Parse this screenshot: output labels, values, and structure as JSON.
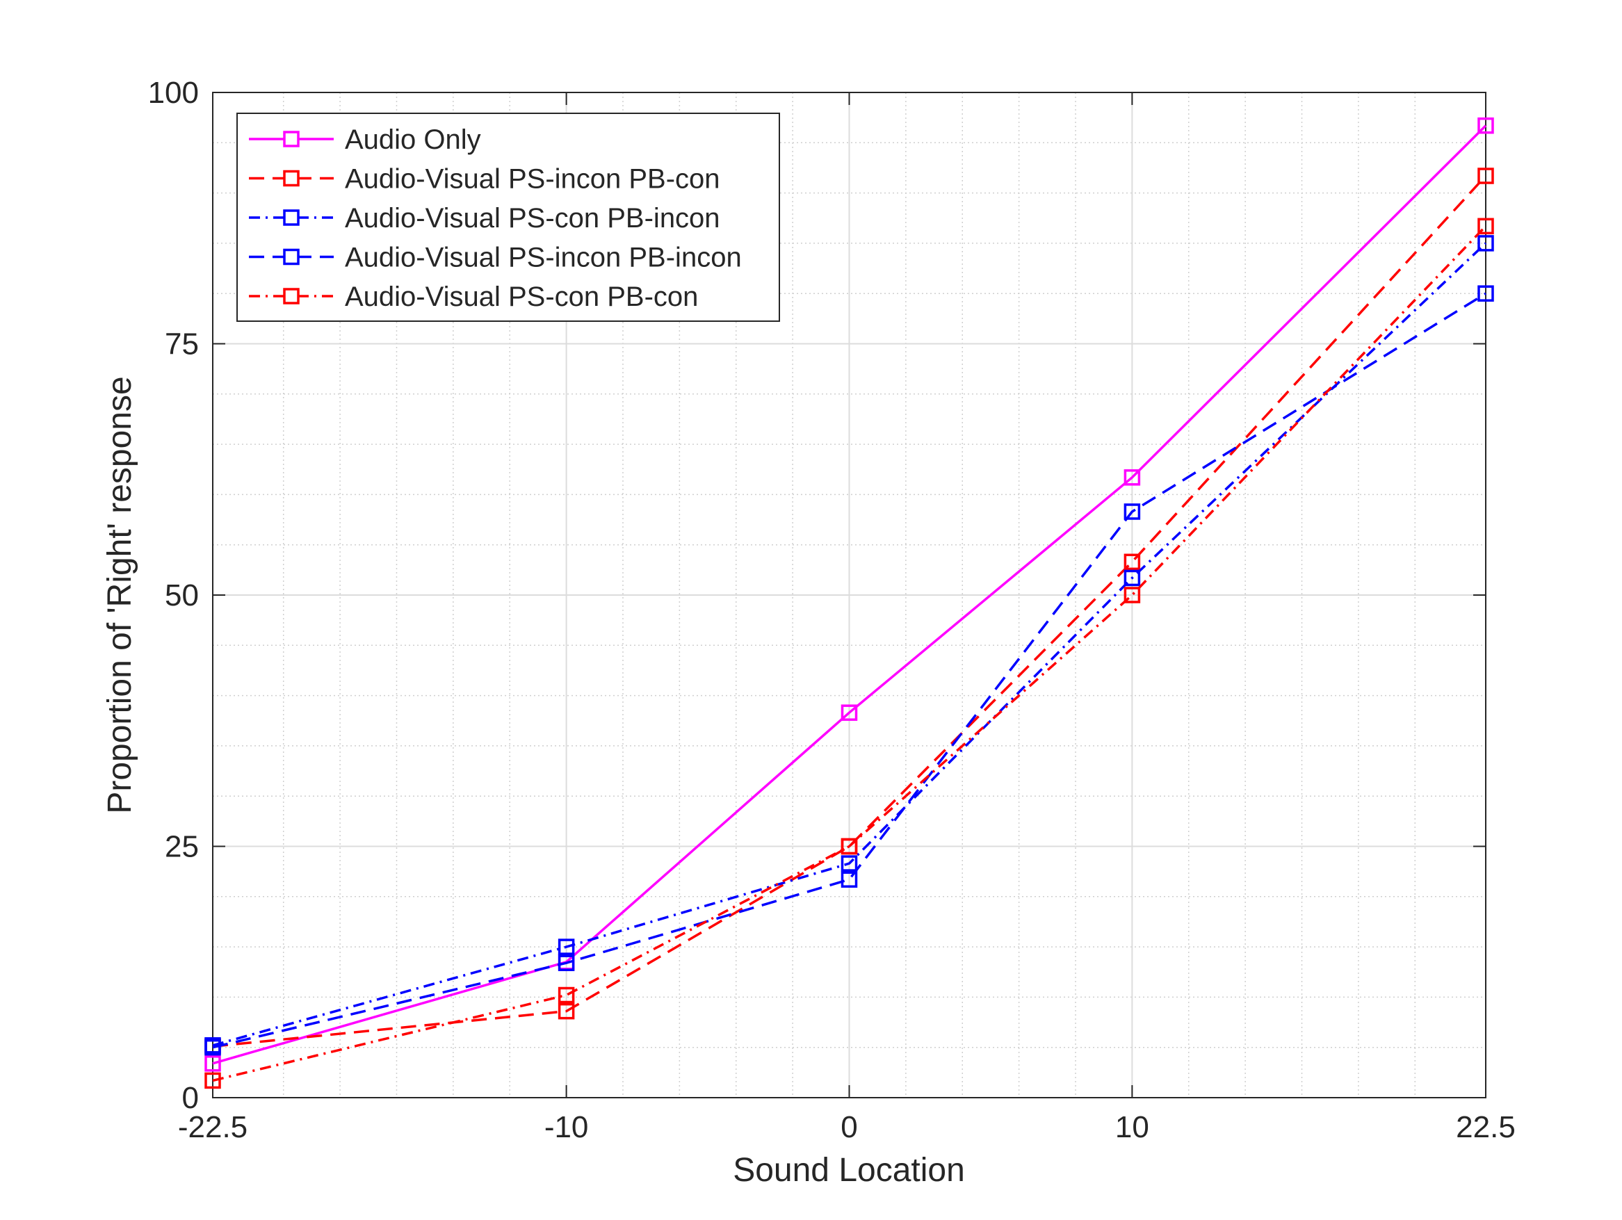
{
  "chart_data": {
    "type": "line",
    "title": "",
    "xlabel": "Sound Location",
    "ylabel": "Proportion of 'Right' response",
    "x": [
      -22.5,
      -10,
      0,
      10,
      22.5
    ],
    "xticks": [
      "-22.5",
      "-10",
      "0",
      "10",
      "22.5"
    ],
    "yticks": [
      "0",
      "25",
      "50",
      "75",
      "100"
    ],
    "xlim": [
      -22.5,
      22.5
    ],
    "ylim": [
      0,
      100
    ],
    "grid": true,
    "minor_grid": true,
    "legend_position": "top-left",
    "series": [
      {
        "name": "Audio Only",
        "color": "#ff00ff",
        "dash": "solid",
        "values": [
          3.4,
          13.5,
          38.3,
          61.7,
          96.7
        ]
      },
      {
        "name": "Audio-Visual PS-incon PB-con",
        "color": "#ff0000",
        "dash": "dashed",
        "values": [
          5.1,
          8.6,
          25.0,
          53.3,
          91.7
        ]
      },
      {
        "name": "Audio-Visual PS-con PB-incon",
        "color": "#0000ff",
        "dash": "dashdot",
        "values": [
          5.2,
          15.0,
          23.3,
          51.7,
          85.0
        ]
      },
      {
        "name": "Audio-Visual PS-incon PB-incon",
        "color": "#0000ff",
        "dash": "dashed",
        "values": [
          5.0,
          13.4,
          21.7,
          58.3,
          80.0
        ]
      },
      {
        "name": "Audio-Visual PS-con PB-con",
        "color": "#ff0000",
        "dash": "dashdot",
        "values": [
          1.7,
          10.2,
          25.0,
          50.0,
          86.7
        ]
      }
    ]
  }
}
